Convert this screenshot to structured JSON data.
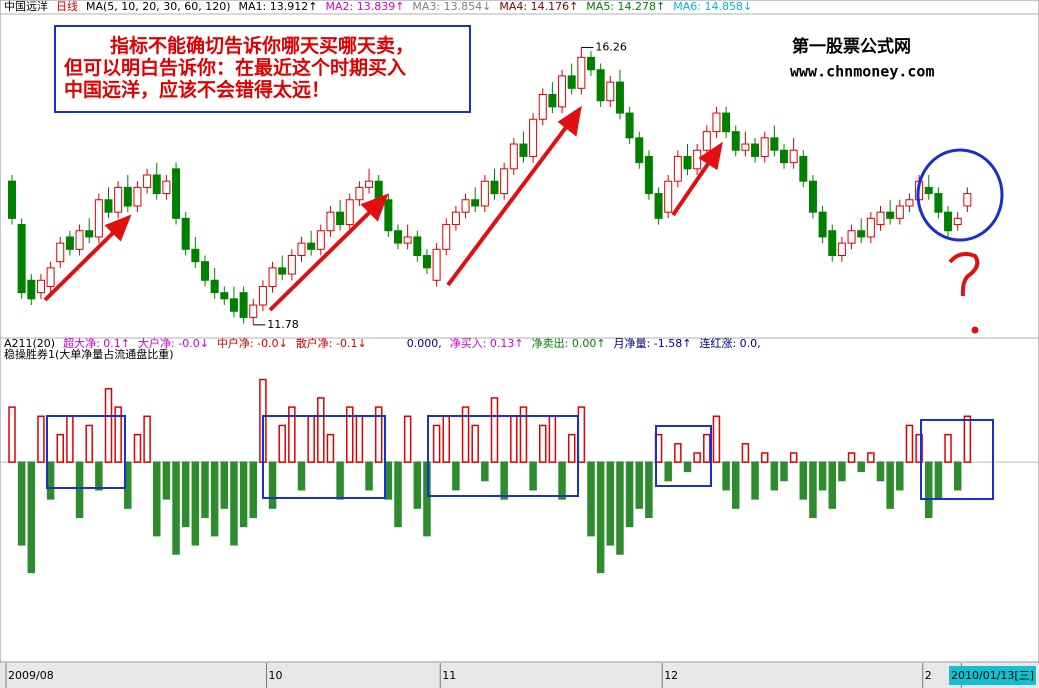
{
  "chart_data": [
    {
      "type": "candlestick",
      "header": [
        {
          "text": "中国远洋",
          "color": "#000000"
        },
        {
          "text": "日线",
          "color": "#cc0000"
        },
        {
          "text": "MA(5, 10, 20, 30, 60, 120)",
          "color": "#000000"
        },
        {
          "text": "MA1: 13.912↑",
          "color": "#000000"
        },
        {
          "text": "MA2: 13.839↑",
          "color": "#d000d0"
        },
        {
          "text": "MA3: 13.854↓",
          "color": "#808080"
        },
        {
          "text": "MA4: 14.176↑",
          "color": "#800000"
        },
        {
          "text": "MA5: 14.278↑",
          "color": "#008000"
        },
        {
          "text": "MA6: 14.858↓",
          "color": "#00b8e0"
        }
      ],
      "annotation": [
        "指标不能确切告诉你哪天买哪天卖，",
        "但可以明白告诉你：在最近这个时期买入",
        "中国远洋，应该不会错得太远！"
      ],
      "watermark": [
        "第一股票公式网",
        "www.chnmoney.com"
      ],
      "categories": [
        "2009/08",
        null,
        null,
        null,
        null,
        null,
        null,
        null,
        null,
        null,
        null,
        null,
        null,
        null,
        null,
        null,
        null,
        null,
        null,
        null,
        null,
        null,
        null,
        null,
        null,
        null,
        null,
        "10",
        null,
        null,
        null,
        null,
        null,
        null,
        null,
        null,
        null,
        null,
        null,
        null,
        null,
        null,
        null,
        null,
        null,
        "11",
        null,
        null,
        null,
        null,
        null,
        null,
        null,
        null,
        null,
        null,
        null,
        null,
        null,
        null,
        null,
        null,
        null,
        null,
        null,
        null,
        null,
        null,
        "12",
        null,
        null,
        null,
        null,
        null,
        null,
        null,
        null,
        null,
        null,
        null,
        null,
        null,
        null,
        null,
        null,
        null,
        null,
        null,
        null,
        null,
        null,
        null,
        null,
        null,
        null,
        "2",
        null,
        null,
        null,
        "2010/01/13[三]"
      ],
      "open": [
        14.1,
        13.4,
        12.5,
        12.3,
        12.4,
        12.8,
        13.2,
        13.0,
        13.3,
        13.2,
        13.8,
        13.6,
        14.0,
        13.7,
        14.0,
        14.2,
        13.9,
        14.3,
        13.5,
        13.0,
        12.8,
        12.5,
        12.3,
        12.2,
        12.3,
        11.9,
        12.1,
        12.4,
        12.7,
        12.6,
        12.9,
        13.1,
        13.0,
        13.3,
        13.6,
        13.4,
        13.8,
        14.0,
        14.1,
        13.8,
        13.3,
        13.1,
        13.2,
        12.9,
        12.5,
        13.0,
        13.4,
        13.6,
        13.8,
        13.7,
        14.1,
        13.9,
        14.3,
        14.7,
        14.5,
        15.1,
        15.5,
        15.3,
        15.8,
        15.6,
        16.1,
        15.9,
        15.4,
        15.7,
        15.2,
        14.8,
        14.5,
        13.9,
        13.6,
        14.1,
        14.5,
        14.3,
        14.6,
        14.9,
        15.2,
        14.9,
        14.6,
        14.7,
        14.5,
        14.8,
        14.6,
        14.4,
        14.5,
        14.1,
        13.6,
        13.3,
        12.9,
        13.1,
        13.3,
        13.2,
        13.4,
        13.6,
        13.5,
        13.7,
        13.8,
        14.0,
        13.9,
        13.6,
        13.4,
        13.7
      ],
      "high": [
        14.2,
        13.5,
        12.6,
        12.6,
        12.8,
        13.2,
        13.3,
        13.4,
        13.5,
        13.9,
        14.0,
        14.1,
        14.2,
        14.1,
        14.3,
        14.4,
        14.2,
        14.4,
        13.6,
        13.2,
        12.9,
        12.7,
        12.4,
        12.4,
        12.4,
        12.2,
        12.5,
        12.8,
        12.9,
        13.0,
        13.2,
        13.3,
        13.4,
        13.7,
        13.8,
        13.9,
        14.1,
        14.3,
        14.2,
        13.9,
        13.4,
        13.4,
        13.3,
        13.0,
        13.1,
        13.5,
        13.7,
        13.9,
        14.0,
        14.2,
        14.3,
        14.4,
        14.8,
        14.9,
        15.2,
        15.6,
        15.7,
        15.9,
        16.0,
        16.26,
        16.2,
        16.0,
        15.8,
        15.9,
        15.3,
        14.9,
        14.6,
        14.0,
        14.2,
        14.6,
        14.7,
        14.7,
        15.0,
        15.3,
        15.3,
        15.0,
        14.9,
        14.8,
        14.9,
        15.0,
        14.7,
        14.8,
        14.6,
        14.2,
        13.7,
        13.4,
        13.2,
        13.4,
        13.5,
        13.6,
        13.7,
        13.8,
        13.8,
        13.9,
        14.2,
        14.2,
        14.0,
        13.7,
        13.6,
        14.0
      ],
      "low": [
        13.4,
        12.2,
        12.1,
        12.2,
        12.3,
        12.7,
        12.9,
        12.9,
        13.1,
        13.1,
        13.5,
        13.5,
        13.6,
        13.6,
        13.9,
        13.8,
        13.8,
        13.4,
        12.9,
        12.7,
        12.4,
        12.2,
        12.1,
        11.9,
        11.8,
        11.78,
        12.0,
        12.3,
        12.5,
        12.5,
        12.8,
        12.9,
        12.9,
        13.2,
        13.3,
        13.3,
        13.7,
        13.9,
        13.7,
        13.2,
        13.0,
        13.0,
        12.8,
        12.6,
        12.4,
        12.9,
        13.3,
        13.5,
        13.6,
        13.6,
        13.8,
        13.8,
        14.2,
        14.4,
        14.4,
        15.0,
        15.2,
        15.2,
        15.5,
        15.5,
        15.8,
        15.3,
        15.3,
        15.1,
        14.7,
        14.3,
        13.8,
        13.4,
        13.5,
        14.0,
        14.2,
        14.2,
        14.5,
        14.8,
        14.8,
        14.5,
        14.5,
        14.4,
        14.4,
        14.5,
        14.3,
        14.3,
        14.0,
        13.5,
        13.1,
        12.8,
        12.8,
        13.0,
        13.1,
        13.1,
        13.3,
        13.4,
        13.4,
        13.6,
        13.7,
        13.8,
        13.5,
        13.2,
        13.3,
        13.6
      ],
      "close": [
        13.5,
        12.3,
        12.2,
        12.5,
        12.7,
        13.1,
        13.0,
        13.3,
        13.2,
        13.8,
        13.6,
        14.0,
        13.7,
        14.0,
        14.2,
        13.9,
        14.1,
        13.5,
        13.0,
        12.8,
        12.5,
        12.3,
        12.2,
        12.0,
        11.9,
        12.1,
        12.4,
        12.7,
        12.6,
        12.9,
        13.1,
        13.0,
        13.3,
        13.6,
        13.4,
        13.8,
        14.0,
        14.1,
        13.8,
        13.3,
        13.1,
        13.2,
        12.9,
        12.7,
        13.0,
        13.4,
        13.6,
        13.8,
        13.7,
        14.1,
        13.9,
        14.3,
        14.7,
        14.5,
        15.1,
        15.5,
        15.3,
        15.8,
        15.6,
        16.1,
        15.9,
        15.4,
        15.7,
        15.2,
        14.8,
        14.4,
        13.9,
        13.5,
        14.1,
        14.5,
        14.3,
        14.6,
        14.9,
        15.2,
        14.9,
        14.6,
        14.7,
        14.5,
        14.8,
        14.6,
        14.4,
        14.6,
        14.1,
        13.6,
        13.2,
        12.9,
        13.1,
        13.3,
        13.2,
        13.5,
        13.6,
        13.5,
        13.7,
        13.8,
        14.1,
        13.9,
        13.6,
        13.3,
        13.5,
        13.9
      ],
      "up_color": "#e00000",
      "down_color": "#008000",
      "ylim": [
        11.6,
        16.8
      ]
    },
    {
      "type": "bar",
      "header": [
        {
          "text": "A211(20)",
          "color": "#000000"
        },
        {
          "text": "超大净: 0.1↑",
          "color": "#d000d0"
        },
        {
          "text": "大户净: -0.0↓",
          "color": "#d000d0"
        },
        {
          "text": "中户净: -0.0↓",
          "color": "#cc0000"
        },
        {
          "text": "散户净: -0.1↓",
          "color": "#cc0000"
        },
        {
          "text": "0.000,",
          "color": "#000080"
        },
        {
          "text": "净买入: 0.13↑",
          "color": "#d000d0"
        },
        {
          "text": "净卖出: 0.00↑",
          "color": "#008000"
        },
        {
          "text": "月净量: -1.58↑",
          "color": "#000080"
        },
        {
          "text": "连红涨: 0.0,",
          "color": "#000080"
        }
      ],
      "subtitle": "稳操胜券1(大单净量占流通盘比重)",
      "values": [
        0.6,
        -0.9,
        -1.2,
        0.5,
        -0.4,
        0.3,
        0.5,
        -0.6,
        0.4,
        -0.3,
        0.8,
        0.6,
        -0.5,
        0.3,
        0.5,
        -0.8,
        -0.4,
        -1.0,
        -0.7,
        -0.9,
        -0.6,
        -0.8,
        -0.5,
        -0.9,
        -0.7,
        -0.6,
        0.9,
        -0.5,
        0.4,
        0.6,
        -0.3,
        0.5,
        0.7,
        0.3,
        -0.4,
        0.6,
        0.5,
        -0.3,
        0.6,
        -0.4,
        -0.7,
        0.5,
        -0.5,
        -0.8,
        0.4,
        0.5,
        -0.3,
        0.6,
        0.4,
        -0.2,
        0.7,
        -0.4,
        0.5,
        0.6,
        -0.3,
        0.4,
        0.5,
        -0.4,
        0.3,
        0.6,
        -0.8,
        -1.2,
        -0.9,
        -1.0,
        -0.7,
        -0.5,
        -0.6,
        0.3,
        -0.2,
        0.2,
        -0.1,
        0.1,
        0.3,
        0.5,
        -0.3,
        -0.5,
        0.2,
        -0.4,
        0.1,
        -0.3,
        -0.2,
        0.1,
        -0.4,
        -0.6,
        -0.3,
        -0.5,
        -0.2,
        0.1,
        -0.1,
        0.1,
        -0.2,
        -0.5,
        -0.3,
        0.4,
        0.3,
        -0.6,
        -0.4,
        0.3,
        -0.3,
        0.5
      ],
      "positive_color": "#e00000",
      "negative_color": "#2e8b2e",
      "ylim": [
        -2.1,
        1.2
      ]
    }
  ]
}
